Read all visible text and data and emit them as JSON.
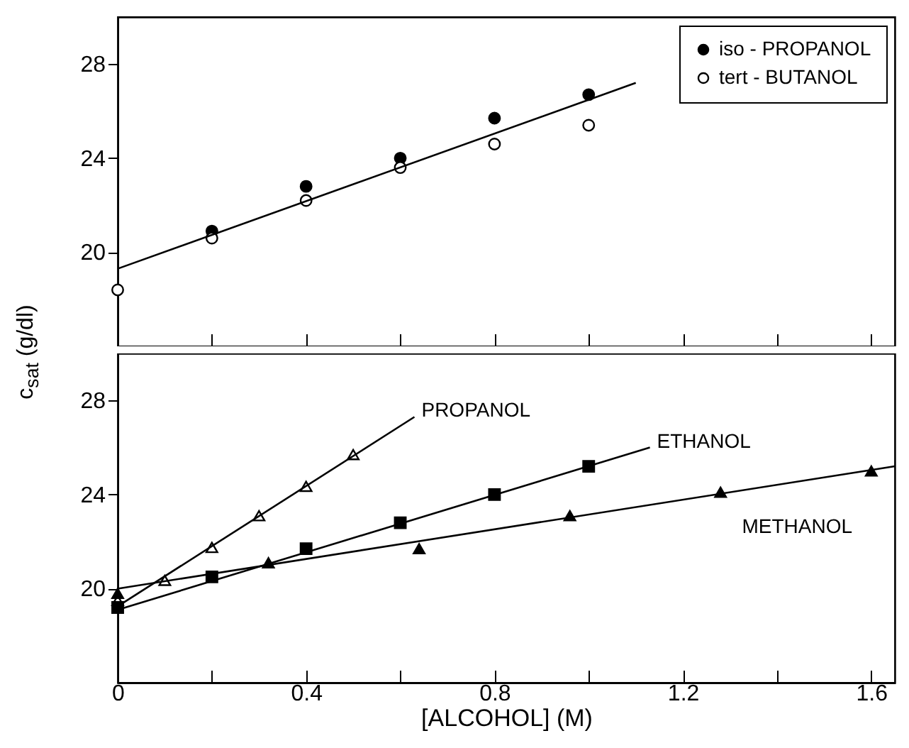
{
  "chart_data": [
    {
      "type": "scatter",
      "xlim": [
        0,
        1.65
      ],
      "ylim": [
        16,
        30
      ],
      "xticks": [
        0,
        {
          "value": 0.2,
          "label": null
        },
        0.4,
        {
          "value": 0.6,
          "label": null
        },
        0.8,
        {
          "value": 1.0,
          "label": null
        },
        1.2,
        {
          "value": 1.4,
          "label": null
        },
        1.6
      ],
      "yticks": [
        20,
        24,
        28
      ],
      "tick_labels": "y",
      "legend": "top right",
      "series": [
        {
          "name": "iso - PROPANOL",
          "marker": "circle",
          "color": "#000000",
          "x": [
            0.2,
            0.4,
            0.6,
            0.8,
            1.0
          ],
          "values": [
            20.9,
            22.8,
            24.0,
            25.7,
            26.7
          ]
        },
        {
          "name": "tert - BUTANOL",
          "marker": "circle",
          "color": "#ffffff",
          "x": [
            0,
            0.2,
            0.4,
            0.6,
            0.8,
            1.0
          ],
          "values": [
            18.4,
            20.6,
            22.2,
            23.6,
            24.6,
            25.4
          ]
        },
        {
          "type": "line",
          "color": "#000000",
          "x": [
            0,
            1.1
          ],
          "values": [
            19.3,
            27.2
          ]
        }
      ]
    },
    {
      "type": "scatter",
      "xlabel": "[ALCOHOL] (M)",
      "ylabel": "c$_{sat}$ (g/dl)",
      "xlim": [
        0,
        1.65
      ],
      "ylim": [
        16,
        30
      ],
      "xticks": [
        0,
        {
          "value": 0.2,
          "label": null
        },
        0.4,
        {
          "value": 0.6,
          "label": null
        },
        0.8,
        {
          "value": 1.0,
          "label": null
        },
        1.2,
        {
          "value": 1.4,
          "label": null
        },
        1.6
      ],
      "yticks": [
        20,
        24,
        28
      ],
      "series": [
        {
          "marker": "triangle",
          "color": "#ffffff",
          "x": [
            0,
            0.1,
            0.2,
            0.3,
            0.4,
            0.5
          ],
          "values": [
            19.5,
            20.35,
            21.75,
            23.1,
            24.35,
            25.7
          ]
        },
        {
          "marker": "square",
          "color": "#000000",
          "x": [
            0,
            0.2,
            0.4,
            0.6,
            0.8,
            1.0
          ],
          "values": [
            19.2,
            20.5,
            21.7,
            22.8,
            24.0,
            25.2
          ]
        },
        {
          "marker": "triangle",
          "color": "#000000",
          "x": [
            0,
            0.32,
            0.64,
            0.96,
            1.28,
            1.6
          ],
          "values": [
            19.8,
            21.1,
            21.7,
            23.1,
            24.1,
            25.0
          ]
        },
        {
          "type": "line",
          "name": "PROPANOL",
          "color": "#000000",
          "x": [
            0,
            0.63
          ],
          "values": [
            19.25,
            27.3
          ]
        },
        {
          "type": "line",
          "name": "ETHANOL",
          "color": "#000000",
          "x": [
            0,
            1.13
          ],
          "values": [
            19.1,
            26.0
          ]
        },
        {
          "type": "line",
          "name": "METHANOL",
          "color": "#000000",
          "x": [
            0,
            1.65
          ],
          "values": [
            20.0,
            25.2
          ]
        }
      ]
    }
  ]
}
